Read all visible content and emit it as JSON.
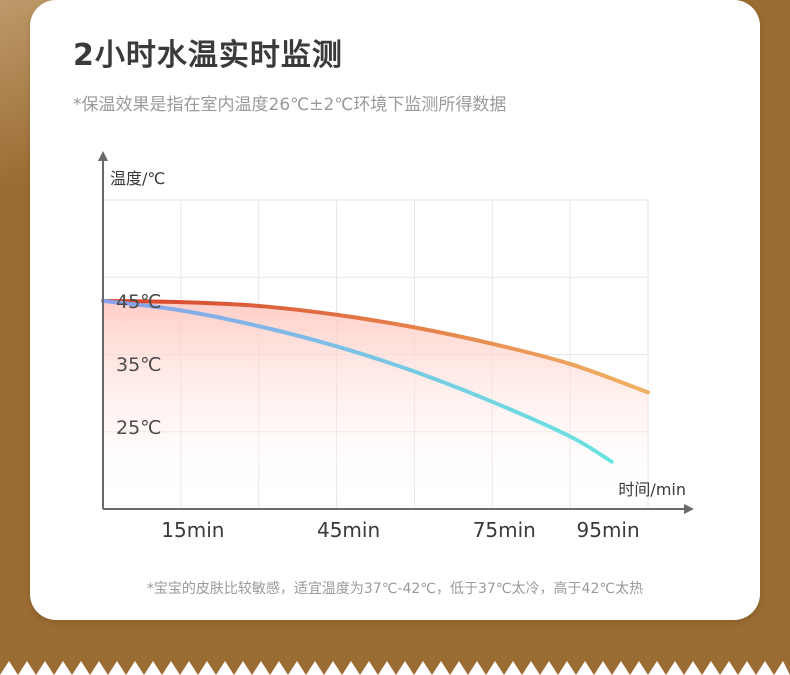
{
  "title": "2小时水温实时监测",
  "subtitle": "*保温效果是指在室内温度26℃±2℃环境下监测所得数据",
  "footnote": "*宝宝的皮肤比较敏感，适宜温度为37℃-42℃，低于37℃太冷，高于42℃太热",
  "colors": {
    "background": "#9a6b32",
    "card": "#ffffff",
    "warm_start": "#d8442e",
    "warm_end": "#f0b060",
    "cool_start": "#7fa6ec",
    "cool_end": "#6de0e0"
  },
  "chart_data": {
    "type": "line",
    "title": "",
    "ylabel": "温度/℃",
    "xlabel": "时间/min",
    "ylim": [
      12,
      61
    ],
    "xlim": [
      0,
      105
    ],
    "x_ticks": [
      15,
      45,
      75,
      95
    ],
    "x_tick_labels": [
      "15min",
      "45min",
      "75min",
      "95min"
    ],
    "y_ticks": [
      25,
      35,
      45
    ],
    "y_tick_labels": [
      "25℃",
      "35℃",
      "45℃"
    ],
    "grid": true,
    "legend": "none",
    "series": [
      {
        "x": [
          0,
          15,
          30,
          45,
          60,
          75,
          90,
          105
        ],
        "values": [
          45,
          44.8,
          44.2,
          42.8,
          40.8,
          38.2,
          35,
          30.5
        ]
      },
      {
        "x": [
          0,
          15,
          30,
          45,
          60,
          75,
          90,
          98
        ],
        "values": [
          45,
          43.5,
          41,
          37.8,
          33.8,
          29,
          23.5,
          19.5
        ]
      }
    ]
  }
}
